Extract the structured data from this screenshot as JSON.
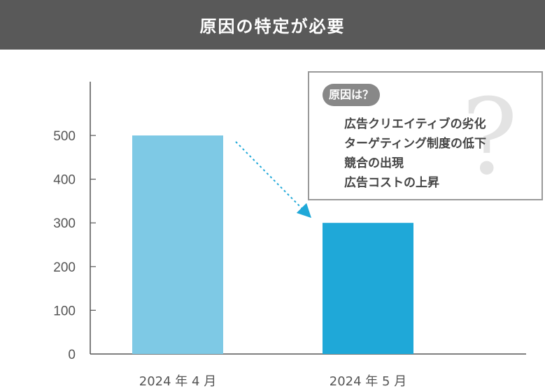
{
  "header": {
    "title": "原因の特定が必要"
  },
  "callout": {
    "pill_label": "原因は？",
    "items": [
      "広告クリエイティブの劣化",
      "ターゲティング制度の低下",
      "競合の出現",
      "広告コストの上昇"
    ],
    "decoration_glyph": "?"
  },
  "chart_data": {
    "type": "bar",
    "categories": [
      "2024 年 4 月",
      "2024 年 5 月"
    ],
    "values": [
      500,
      300
    ],
    "bar_colors": [
      "#7ec9e5",
      "#1fa8d8"
    ],
    "trend_arrow_color": "#1fa8d8",
    "yticks": [
      0,
      100,
      200,
      300,
      400,
      500
    ],
    "ylim": [
      0,
      600
    ],
    "title": "",
    "xlabel": "",
    "ylabel": ""
  }
}
